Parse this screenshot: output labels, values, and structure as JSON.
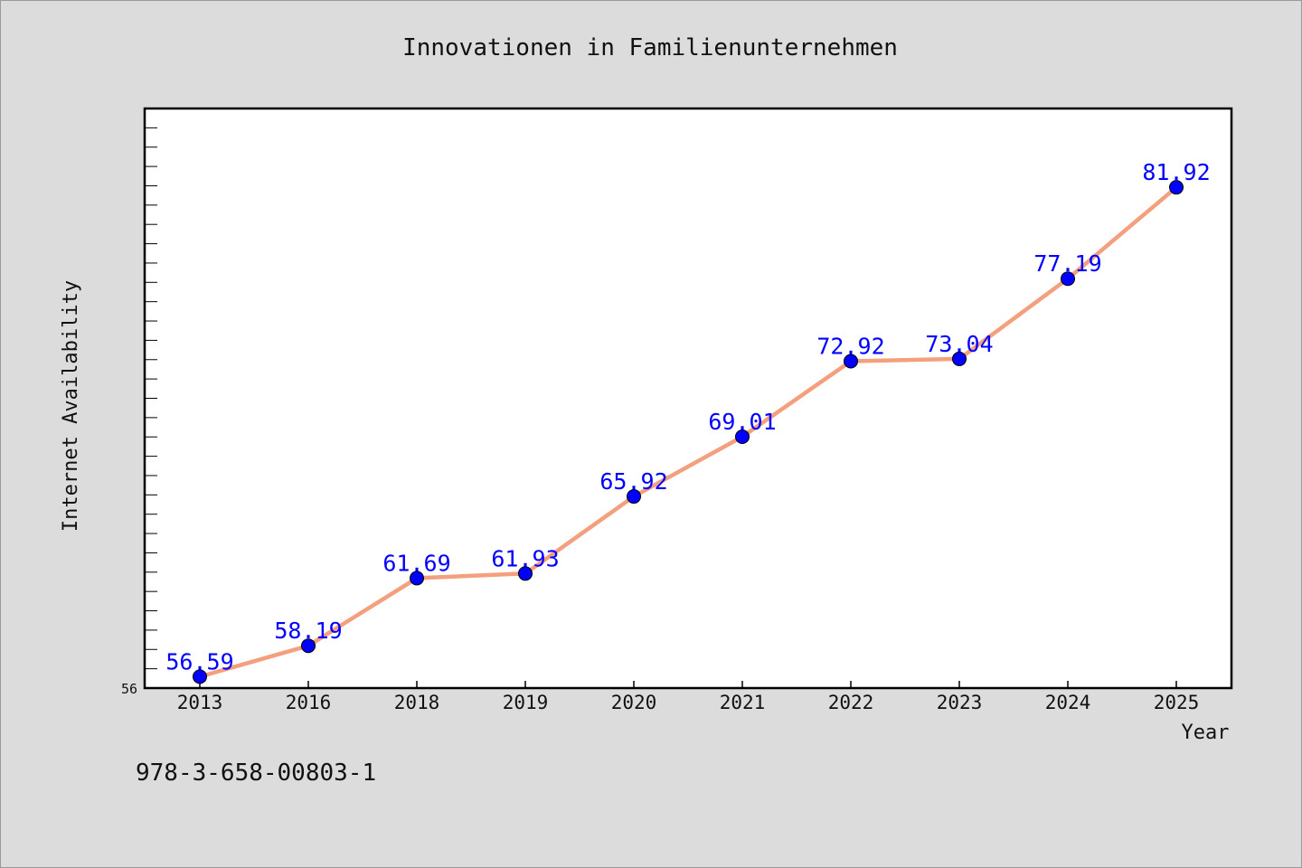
{
  "chart_data": {
    "type": "line",
    "title": "Innovationen in Familienunternehmen",
    "xlabel": "Year",
    "ylabel": "Internet Availability",
    "categories": [
      "2013",
      "2016",
      "2018",
      "2019",
      "2020",
      "2021",
      "2022",
      "2023",
      "2024",
      "2025"
    ],
    "series": [
      {
        "values": [
          56.59,
          58.19,
          61.69,
          61.93,
          65.92,
          69.01,
          72.92,
          73.04,
          77.19,
          81.92
        ]
      }
    ],
    "data_labels": [
      "56.59",
      "58.19",
      "61.69",
      "61.93",
      "65.92",
      "69.01",
      "72.92",
      "73.04",
      "77.19",
      "81.92"
    ],
    "ylim": [
      56,
      86
    ],
    "y_tick_labels": [
      "56"
    ],
    "grid": false,
    "line_color": "#f4a07e",
    "marker_color": "#0000ff",
    "label_color": "#0000ff"
  },
  "footer": {
    "code": "978-3-658-00803-1"
  }
}
